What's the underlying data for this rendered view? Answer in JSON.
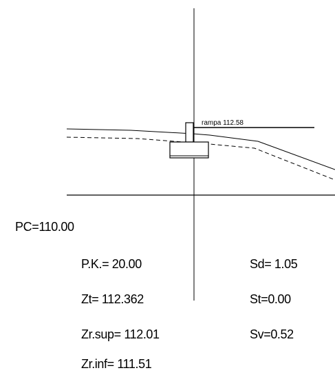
{
  "profile": {
    "rampa_label": "rampa 112.58"
  },
  "labels": {
    "pc": "PC=110.00",
    "pk": "P.K.= 20.00",
    "zt": "Zt= 112.362",
    "zr_sup": "Zr.sup= 112.01",
    "zr_inf": "Zr.inf= 111.51",
    "sd": "Sd= 1.05",
    "st": "St=0.00",
    "sv": "Sv=0.52"
  },
  "colors": {
    "ink": "#000000",
    "background": "#ffffff"
  }
}
